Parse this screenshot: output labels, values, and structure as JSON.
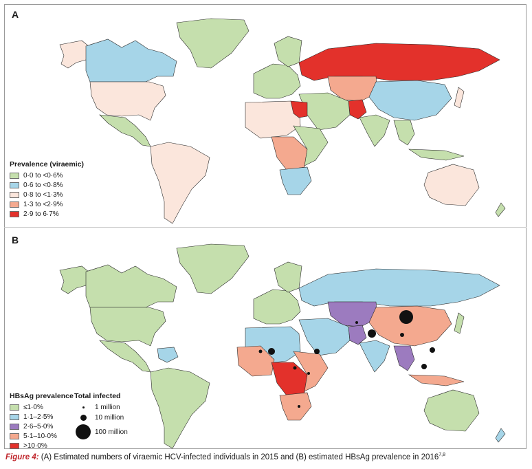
{
  "panels": {
    "a": {
      "letter": "A"
    },
    "b": {
      "letter": "B"
    }
  },
  "legend_a": {
    "title": "Prevalence (viraemic)",
    "items": [
      {
        "label": "0·0 to <0·6%",
        "color": "#c5dfad"
      },
      {
        "label": "0·6 to <0·8%",
        "color": "#a6d5e8"
      },
      {
        "label": "0·8 to <1·3%",
        "color": "#fbe6dc"
      },
      {
        "label": "1·3 to <2·9%",
        "color": "#f4a98f"
      },
      {
        "label": "2·9 to 6·7%",
        "color": "#e3312b"
      }
    ]
  },
  "legend_b": {
    "title": "HBsAg prevalence",
    "items": [
      {
        "label": "≤1·0%",
        "color": "#c5dfad"
      },
      {
        "label": "1·1–2·5%",
        "color": "#a6d5e8"
      },
      {
        "label": "2·6–5·0%",
        "color": "#9c7bbf"
      },
      {
        "label": "5·1–10·0%",
        "color": "#f4a98f"
      },
      {
        "label": ">10·0%",
        "color": "#e3312b"
      }
    ]
  },
  "bubble_legend": {
    "title": "Total infected",
    "items": [
      {
        "label": "1 million",
        "millions": 1
      },
      {
        "label": "10 million",
        "millions": 10
      },
      {
        "label": "100 million",
        "millions": 100
      }
    ]
  },
  "caption": {
    "figure_label": "Figure 4:",
    "text": " (A) Estimated numbers of viraemic HCV-infected individuals in 2015 and (B) estimated HBsAg prevalence in 2016",
    "refs": "7,8"
  },
  "colors": {
    "ocean": "#ffffff",
    "border": "#2a2a2a",
    "bubble": "#111111"
  }
}
